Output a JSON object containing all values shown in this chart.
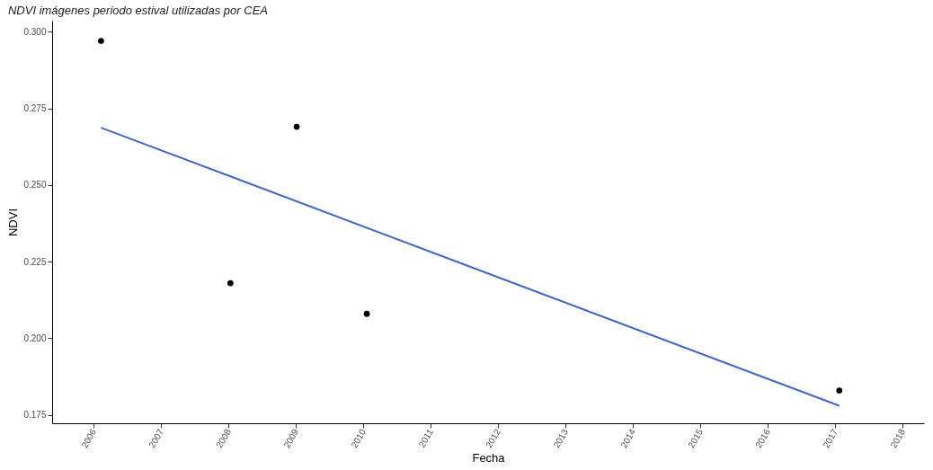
{
  "chart_data": {
    "type": "scatter",
    "title": "NDVI imágenes periodo estival utilizadas por CEA",
    "xlabel": "Fecha",
    "ylabel": "NDVI",
    "x": [
      "2006-02-10",
      "2008-01-12",
      "2009-01-05",
      "2010-01-20",
      "2017-01-23"
    ],
    "series": [
      {
        "color": "#000000",
        "marker": "circle",
        "values": [
          0.297,
          0.218,
          0.269,
          0.208,
          0.183
        ]
      },
      {
        "type": "line",
        "color": "#4766c4",
        "x": [
          "2006-02-10",
          "2017-01-23"
        ],
        "values": [
          0.2687,
          0.178
        ]
      }
    ],
    "xlim": [
      "2005-05-21",
      "2018-04-27"
    ],
    "ylim": [
      0.1723,
      0.3036
    ],
    "xticks": [
      {
        "value": "2006",
        "label": "2006"
      },
      {
        "value": "2007",
        "label": "2007"
      },
      {
        "value": "2008",
        "label": "2008"
      },
      {
        "value": "2009",
        "label": "2009"
      },
      {
        "value": "2010",
        "label": "2010"
      },
      {
        "value": "2011",
        "label": "2011"
      },
      {
        "value": "2012",
        "label": "2012"
      },
      {
        "value": "2013",
        "label": "2013"
      },
      {
        "value": "2014",
        "label": "2014"
      },
      {
        "value": "2015",
        "label": "2015"
      },
      {
        "value": "2016",
        "label": "2016"
      },
      {
        "value": "2017",
        "label": "2017"
      },
      {
        "value": "2018",
        "label": "2018"
      }
    ],
    "yticks": [
      {
        "value": 0.175,
        "label": "0.175"
      },
      {
        "value": 0.2,
        "label": "0.200"
      },
      {
        "value": 0.225,
        "label": "0.225"
      },
      {
        "value": 0.25,
        "label": "0.250"
      },
      {
        "value": 0.275,
        "label": "0.275"
      },
      {
        "value": 0.3,
        "label": "0.300"
      }
    ],
    "grid": false
  }
}
